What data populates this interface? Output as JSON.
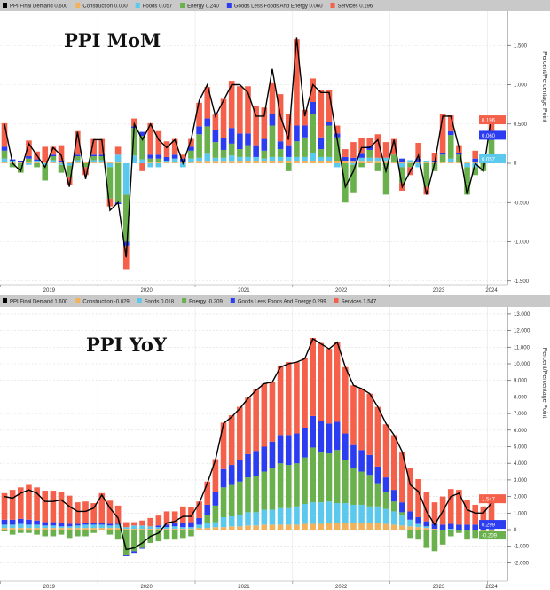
{
  "colors": {
    "total": "#000000",
    "construction": "#f2b25c",
    "foods": "#5bc8ee",
    "energy": "#6ab04c",
    "goods": "#2c3cf0",
    "services": "#f4604a"
  },
  "chart_data": [
    {
      "type": "bar",
      "title": "PPI MoM",
      "ylabel": "Percent/Percentage Point",
      "ylim": [
        -1.6,
        1.85
      ],
      "yticks": [
        "-1.500",
        "-1.000",
        "-0.500",
        "0",
        "0.500",
        "1.000",
        "1.500"
      ],
      "ytick_values": [
        -1.5,
        -1.0,
        -0.5,
        0,
        0.5,
        1.0,
        1.5
      ],
      "xticks": [
        "2019",
        "2020",
        "2021",
        "2022",
        "2023",
        "2024"
      ],
      "x_start": "2019-01",
      "x_end": "2024-01",
      "legend": [
        {
          "key": "total",
          "label": "PPI Final Demand",
          "value": "0.600"
        },
        {
          "key": "construction",
          "label": "Construction",
          "value": "0.000"
        },
        {
          "key": "foods",
          "label": "Foods",
          "value": "0.057"
        },
        {
          "key": "energy",
          "label": "Energy",
          "value": "0.240"
        },
        {
          "key": "goods",
          "label": "Goods Less Foods And Energy",
          "value": "0.060"
        },
        {
          "key": "services",
          "label": "Services",
          "value": "0.196"
        }
      ],
      "end_tags": [
        {
          "key": "services",
          "label": "0.196"
        },
        {
          "key": "goods",
          "label": "0.060"
        },
        {
          "key": "foods",
          "label": "0.057"
        }
      ],
      "series": {
        "total": [
          0.5,
          0.0,
          -0.1,
          0.25,
          0.1,
          -0.05,
          0.2,
          0.1,
          -0.3,
          0.4,
          -0.2,
          0.3,
          0.3,
          -0.6,
          -0.5,
          -1.2,
          0.5,
          0.3,
          0.5,
          0.3,
          0.2,
          0.3,
          0.0,
          0.3,
          0.8,
          1.0,
          0.6,
          0.8,
          1.0,
          1.0,
          0.9,
          0.6,
          0.6,
          1.2,
          0.6,
          0.3,
          1.6,
          0.6,
          1.0,
          0.9,
          0.9,
          0.3,
          -0.3,
          -0.1,
          0.2,
          0.2,
          0.3,
          -0.1,
          0.3,
          -0.3,
          -0.1,
          0.1,
          -0.4,
          0.0,
          0.6,
          0.6,
          0.2,
          -0.4,
          0.0,
          -0.1,
          0.6
        ],
        "construction": [
          0.01,
          0.01,
          0.01,
          0.01,
          0.01,
          0.01,
          0.01,
          0.01,
          0.01,
          0.01,
          0.01,
          0.01,
          0.01,
          0.01,
          0.01,
          0.0,
          0.0,
          0.0,
          0.01,
          0.01,
          0.01,
          0.01,
          0.01,
          0.01,
          0.02,
          0.02,
          0.02,
          0.02,
          0.02,
          0.03,
          0.03,
          0.03,
          0.03,
          0.03,
          0.03,
          0.03,
          0.03,
          0.03,
          0.03,
          0.03,
          0.03,
          0.03,
          0.03,
          0.02,
          0.02,
          0.02,
          0.02,
          0.02,
          0.01,
          0.01,
          0.01,
          0.01,
          0.01,
          0.01,
          0.01,
          0.01,
          0.01,
          0.01,
          0.01,
          0.0,
          0.0
        ],
        "foods": [
          0.05,
          0.02,
          0.0,
          -0.02,
          0.02,
          -0.02,
          0.03,
          -0.02,
          -0.03,
          0.03,
          0.0,
          0.03,
          0.03,
          -0.05,
          0.1,
          -0.4,
          0.1,
          0.05,
          -0.05,
          -0.05,
          0.02,
          0.05,
          -0.05,
          0.05,
          0.05,
          0.1,
          0.05,
          0.05,
          0.08,
          0.05,
          0.05,
          0.05,
          0.03,
          0.05,
          0.05,
          0.05,
          0.05,
          0.05,
          0.1,
          0.05,
          0.05,
          -0.05,
          0.0,
          -0.02,
          0.05,
          0.05,
          0.05,
          0.05,
          0.0,
          -0.05,
          0.03,
          -0.05,
          0.02,
          0.0,
          0.0,
          0.05,
          0.0,
          -0.05,
          -0.05,
          0.0,
          0.057
        ],
        "energy": [
          0.1,
          -0.05,
          -0.12,
          0.05,
          -0.05,
          -0.2,
          0.05,
          -0.1,
          -0.15,
          0.05,
          -0.05,
          0.05,
          0.05,
          -0.4,
          -0.5,
          -0.6,
          0.35,
          0.3,
          0.05,
          0.05,
          0.0,
          0.0,
          0.0,
          0.1,
          0.3,
          0.35,
          0.2,
          0.1,
          0.15,
          0.1,
          0.15,
          0.0,
          0.1,
          0.4,
          0.1,
          -0.1,
          0.2,
          0.25,
          0.5,
          0.1,
          0.4,
          0.3,
          -0.5,
          -0.35,
          -0.05,
          0.1,
          -0.1,
          -0.4,
          0.1,
          -0.2,
          -0.05,
          0.0,
          -0.3,
          -0.1,
          0.1,
          0.3,
          0.1,
          -0.35,
          -0.1,
          -0.1,
          0.24
        ],
        "goods": [
          0.05,
          0.02,
          0.02,
          0.03,
          0.02,
          0.0,
          0.02,
          0.02,
          0.0,
          0.02,
          0.0,
          0.02,
          0.02,
          0.0,
          -0.02,
          -0.05,
          0.02,
          0.05,
          0.05,
          0.05,
          0.05,
          0.05,
          0.05,
          0.05,
          0.1,
          0.1,
          0.15,
          0.15,
          0.2,
          0.2,
          0.15,
          0.15,
          0.15,
          0.15,
          0.1,
          0.15,
          0.2,
          0.15,
          0.15,
          0.15,
          0.05,
          0.05,
          0.05,
          0.05,
          0.05,
          0.05,
          0.0,
          0.0,
          0.0,
          0.05,
          0.0,
          0.05,
          0.0,
          0.02,
          0.02,
          0.05,
          0.02,
          0.0,
          0.05,
          0.0,
          0.06
        ],
        "services": [
          0.3,
          0.0,
          0.0,
          0.2,
          0.1,
          0.2,
          0.1,
          0.2,
          -0.1,
          0.3,
          -0.1,
          0.2,
          0.2,
          -0.1,
          0.1,
          -0.3,
          0.1,
          -0.1,
          0.4,
          0.3,
          0.2,
          0.2,
          0.05,
          0.1,
          0.3,
          0.4,
          0.2,
          0.5,
          0.6,
          0.6,
          0.6,
          0.5,
          0.4,
          0.4,
          0.6,
          0.4,
          1.1,
          0.2,
          0.3,
          0.6,
          0.4,
          0.1,
          0.1,
          0.2,
          0.2,
          0.1,
          0.3,
          0.2,
          0.2,
          -0.1,
          -0.1,
          0.2,
          -0.1,
          0.1,
          0.5,
          0.2,
          0.1,
          0.0,
          0.1,
          0.05,
          0.196
        ]
      }
    },
    {
      "type": "bar",
      "title": "PPI YoY",
      "ylabel": "Percent/Percentage Point",
      "ylim": [
        -2.5,
        13.4
      ],
      "yticks": [
        "-2.000",
        "-1.000",
        "0",
        "1.000",
        "2.000",
        "3.000",
        "4.000",
        "5.000",
        "6.000",
        "7.000",
        "8.000",
        "9.000",
        "10.000",
        "11.000",
        "12.000",
        "13.000"
      ],
      "ytick_values": [
        -2,
        -1,
        0,
        1,
        2,
        3,
        4,
        5,
        6,
        7,
        8,
        9,
        10,
        11,
        12,
        13
      ],
      "xticks": [
        "2019",
        "2020",
        "2021",
        "2022",
        "2023",
        "2024"
      ],
      "x_start": "2019-01",
      "x_end": "2024-01",
      "legend": [
        {
          "key": "total",
          "label": "PPI Final Demand",
          "value": "1.600"
        },
        {
          "key": "construction",
          "label": "Construction",
          "value": "-0.029"
        },
        {
          "key": "foods",
          "label": "Foods",
          "value": "0.018"
        },
        {
          "key": "energy",
          "label": "Energy",
          "value": "-0.209"
        },
        {
          "key": "goods",
          "label": "Goods Less Foods And Energy",
          "value": "0.299"
        },
        {
          "key": "services",
          "label": "Services",
          "value": "1.547"
        }
      ],
      "end_tags": [
        {
          "key": "services",
          "label": "1.547"
        },
        {
          "key": "goods",
          "label": "0.299"
        },
        {
          "key": "energy",
          "label": "-0.209"
        }
      ],
      "series": {
        "total": [
          2.0,
          1.9,
          2.2,
          2.4,
          2.2,
          1.7,
          1.7,
          1.8,
          1.4,
          1.1,
          1.1,
          1.3,
          2.1,
          1.3,
          0.7,
          -1.2,
          -1.1,
          -0.8,
          -0.4,
          -0.2,
          0.4,
          0.5,
          0.8,
          0.8,
          1.6,
          2.8,
          4.2,
          6.4,
          6.8,
          7.3,
          7.9,
          8.4,
          8.8,
          8.9,
          9.8,
          10.0,
          10.1,
          10.3,
          11.5,
          11.2,
          10.9,
          11.3,
          9.8,
          8.7,
          8.5,
          8.2,
          7.4,
          6.4,
          5.7,
          4.7,
          2.7,
          2.3,
          1.1,
          0.3,
          1.1,
          2.0,
          2.2,
          1.2,
          1.0,
          1.0,
          1.6
        ],
        "construction": [
          0.1,
          0.1,
          0.1,
          0.1,
          0.1,
          0.1,
          0.1,
          0.1,
          0.1,
          0.1,
          0.1,
          0.1,
          0.1,
          0.1,
          0.1,
          0.05,
          0.05,
          0.05,
          0.05,
          0.05,
          0.05,
          0.05,
          0.05,
          0.05,
          0.1,
          0.1,
          0.15,
          0.15,
          0.2,
          0.2,
          0.25,
          0.25,
          0.3,
          0.3,
          0.3,
          0.3,
          0.3,
          0.35,
          0.35,
          0.35,
          0.4,
          0.4,
          0.4,
          0.4,
          0.4,
          0.4,
          0.4,
          0.35,
          0.3,
          0.25,
          0.2,
          0.15,
          0.1,
          0.05,
          0.0,
          0.0,
          0.0,
          0.0,
          0.0,
          -0.02,
          -0.029
        ],
        "foods": [
          0.2,
          0.2,
          0.25,
          0.2,
          0.2,
          0.15,
          0.15,
          0.1,
          0.1,
          0.15,
          0.2,
          0.2,
          0.2,
          0.15,
          0.2,
          0.1,
          0.2,
          0.2,
          0.15,
          0.1,
          0.1,
          0.15,
          0.1,
          0.1,
          0.2,
          0.3,
          0.3,
          0.6,
          0.6,
          0.7,
          0.8,
          0.8,
          0.9,
          0.9,
          1.0,
          1.0,
          1.1,
          1.2,
          1.3,
          1.3,
          1.3,
          1.2,
          1.2,
          1.1,
          1.1,
          1.0,
          1.0,
          0.9,
          0.8,
          0.6,
          0.4,
          0.2,
          0.1,
          0.0,
          0.0,
          0.05,
          0.0,
          0.0,
          0.0,
          0.0,
          0.018
        ],
        "energy": [
          -0.1,
          -0.3,
          -0.2,
          -0.2,
          -0.3,
          -0.4,
          -0.4,
          -0.3,
          -0.5,
          -0.4,
          -0.4,
          -0.2,
          0.0,
          -0.3,
          -0.6,
          -1.5,
          -1.3,
          -1.1,
          -0.8,
          -0.7,
          -0.6,
          -0.6,
          -0.5,
          -0.4,
          0.0,
          0.5,
          1.0,
          1.8,
          1.9,
          2.0,
          2.1,
          2.2,
          2.3,
          2.5,
          2.7,
          2.6,
          2.6,
          2.8,
          3.3,
          3.0,
          2.9,
          3.2,
          2.6,
          2.2,
          2.0,
          1.9,
          1.4,
          1.0,
          0.6,
          0.2,
          -0.5,
          -0.6,
          -1.1,
          -1.3,
          -0.9,
          -0.4,
          -0.2,
          -0.6,
          -0.5,
          -0.4,
          -0.209
        ],
        "goods": [
          0.3,
          0.3,
          0.3,
          0.3,
          0.25,
          0.2,
          0.2,
          0.2,
          0.15,
          0.1,
          0.1,
          0.1,
          0.1,
          0.1,
          0.05,
          -0.1,
          -0.1,
          -0.05,
          0.0,
          0.1,
          0.15,
          0.2,
          0.25,
          0.3,
          0.4,
          0.6,
          0.8,
          1.1,
          1.2,
          1.3,
          1.4,
          1.5,
          1.5,
          1.6,
          1.7,
          1.8,
          1.8,
          1.8,
          1.9,
          1.9,
          1.8,
          1.7,
          1.6,
          1.4,
          1.3,
          1.2,
          1.0,
          0.9,
          0.7,
          0.6,
          0.5,
          0.4,
          0.3,
          0.3,
          0.3,
          0.3,
          0.3,
          0.3,
          0.3,
          0.3,
          0.299
        ],
        "services": [
          1.6,
          1.8,
          1.9,
          2.1,
          2.0,
          1.9,
          1.9,
          1.9,
          1.7,
          1.3,
          1.3,
          1.2,
          1.8,
          1.4,
          1.1,
          0.3,
          0.2,
          0.3,
          0.5,
          0.6,
          0.8,
          0.7,
          1.0,
          0.9,
          1.0,
          1.4,
          2.0,
          2.8,
          3.0,
          3.2,
          3.4,
          3.7,
          3.8,
          3.6,
          4.2,
          4.4,
          4.3,
          4.2,
          4.7,
          4.7,
          4.5,
          4.8,
          4.0,
          3.6,
          3.7,
          3.7,
          3.6,
          3.2,
          3.3,
          3.0,
          2.6,
          2.3,
          1.8,
          1.3,
          1.7,
          2.1,
          2.1,
          1.5,
          1.2,
          1.1,
          1.547
        ]
      }
    }
  ]
}
